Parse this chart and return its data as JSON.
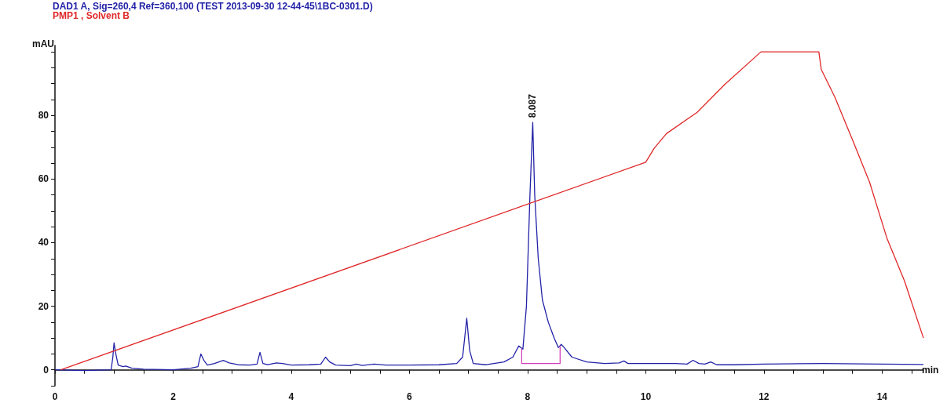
{
  "chart_data": {
    "type": "line",
    "xlabel": "min",
    "ylabel": "mAU",
    "xlim": [
      0,
      14.7
    ],
    "xticks": [
      0,
      {
        "value": 0.5,
        "label": null
      },
      {
        "value": 1,
        "label": null
      },
      {
        "value": 1.5,
        "label": null
      },
      2,
      {
        "value": 2.5,
        "label": null
      },
      {
        "value": 3,
        "label": null
      },
      {
        "value": 3.5,
        "label": null
      },
      4,
      {
        "value": 4.5,
        "label": null
      },
      {
        "value": 5,
        "label": null
      },
      {
        "value": 5.5,
        "label": null
      },
      6,
      {
        "value": 6.5,
        "label": null
      },
      {
        "value": 7,
        "label": null
      },
      {
        "value": 7.5,
        "label": null
      },
      8,
      {
        "value": 8.5,
        "label": null
      },
      {
        "value": 9,
        "label": null
      },
      {
        "value": 9.5,
        "label": null
      },
      10,
      {
        "value": 10.5,
        "label": null
      },
      {
        "value": 11,
        "label": null
      },
      {
        "value": 11.5,
        "label": null
      },
      12,
      {
        "value": 12.5,
        "label": null
      },
      {
        "value": 13,
        "label": null
      },
      {
        "value": 13.5,
        "label": null
      },
      14,
      {
        "value": 14.5,
        "label": null
      }
    ],
    "ylim": [
      -5,
      102
    ],
    "yticks": [
      {
        "value": -5,
        "label": null
      },
      0,
      {
        "value": 5,
        "label": null
      },
      {
        "value": 10,
        "label": null
      },
      {
        "value": 15,
        "label": null
      },
      20,
      {
        "value": 25,
        "label": null
      },
      {
        "value": 30,
        "label": null
      },
      {
        "value": 35,
        "label": null
      },
      40,
      {
        "value": 45,
        "label": null
      },
      {
        "value": 50,
        "label": null
      },
      {
        "value": 55,
        "label": null
      },
      60,
      {
        "value": 65,
        "label": null
      },
      {
        "value": 70,
        "label": null
      },
      {
        "value": 75,
        "label": null
      },
      80,
      {
        "value": 85,
        "label": null
      },
      {
        "value": 90,
        "label": null
      },
      {
        "value": 95,
        "label": null
      },
      {
        "value": 100,
        "label": null
      }
    ],
    "grid": false,
    "legend": "top left",
    "marker": "none",
    "line_style": "solid",
    "annotations": [
      {
        "text": "8.087",
        "x": 8.087,
        "y": 77.8
      }
    ],
    "series": [
      {
        "name": "DAD1 A, Sig=260,4 Ref=360,100 (TEST 2013-09-30 12-44-45\\1BC-0301.D)",
        "color": "#2222a8",
        "x": [
          0,
          0.5,
          0.95,
          0.98,
          1.0,
          1.03,
          1.07,
          1.15,
          1.2,
          1.3,
          1.5,
          2.0,
          2.3,
          2.42,
          2.47,
          2.52,
          2.58,
          2.7,
          2.85,
          2.95,
          3.1,
          3.3,
          3.42,
          3.47,
          3.52,
          3.6,
          3.75,
          3.85,
          4.0,
          4.3,
          4.5,
          4.58,
          4.65,
          4.75,
          5.0,
          5.1,
          5.2,
          5.4,
          5.6,
          6.0,
          6.5,
          6.8,
          6.9,
          6.97,
          7.02,
          7.08,
          7.3,
          7.6,
          7.75,
          7.85,
          7.92,
          7.98,
          8.04,
          8.087,
          8.12,
          8.18,
          8.25,
          8.35,
          8.45,
          8.52,
          8.57,
          8.62,
          8.75,
          9.0,
          9.3,
          9.55,
          9.63,
          9.7,
          10.0,
          10.5,
          10.7,
          10.8,
          10.9,
          11.0,
          11.1,
          11.2,
          11.5,
          12,
          13,
          14,
          14.7
        ],
        "values": [
          0,
          -0.2,
          0,
          4,
          8.5,
          5,
          1.5,
          1,
          1.2,
          0.5,
          0.2,
          0,
          0.5,
          1,
          5,
          3,
          1.5,
          2,
          3,
          2.2,
          1.6,
          1.5,
          1.8,
          5.5,
          2,
          1.6,
          2.2,
          2,
          1.5,
          1.6,
          1.8,
          4,
          2.5,
          1.5,
          1.3,
          1.8,
          1.4,
          1.8,
          1.5,
          1.5,
          1.6,
          2,
          4,
          16.2,
          6,
          2,
          1.6,
          2.5,
          4,
          7.5,
          6.5,
          20,
          55,
          77.8,
          55,
          35,
          22,
          15,
          10,
          7,
          8,
          7,
          4,
          2.5,
          2,
          2.2,
          2.8,
          2,
          2,
          2,
          1.8,
          3,
          2,
          1.8,
          2.5,
          1.6,
          1.6,
          1.8,
          2,
          1.8,
          1.7
        ]
      },
      {
        "name": "PMP1 , Solvent B",
        "color": "#e02828",
        "x": [
          0.1,
          10.0,
          10.14,
          10.35,
          10.87,
          11.34,
          11.95,
          12.93,
          12.97,
          13.2,
          13.5,
          13.79,
          14.08,
          14.38,
          14.7
        ],
        "values": [
          0,
          65.3,
          69.6,
          74.3,
          81,
          89.8,
          100,
          100,
          94.5,
          85.8,
          72.3,
          58.9,
          41.5,
          27.9,
          10
        ]
      },
      {
        "color": "#d040c0",
        "x": [
          7.9,
          7.9,
          8.55,
          8.55
        ],
        "values": [
          6.6,
          2,
          2,
          7.6
        ]
      }
    ]
  }
}
